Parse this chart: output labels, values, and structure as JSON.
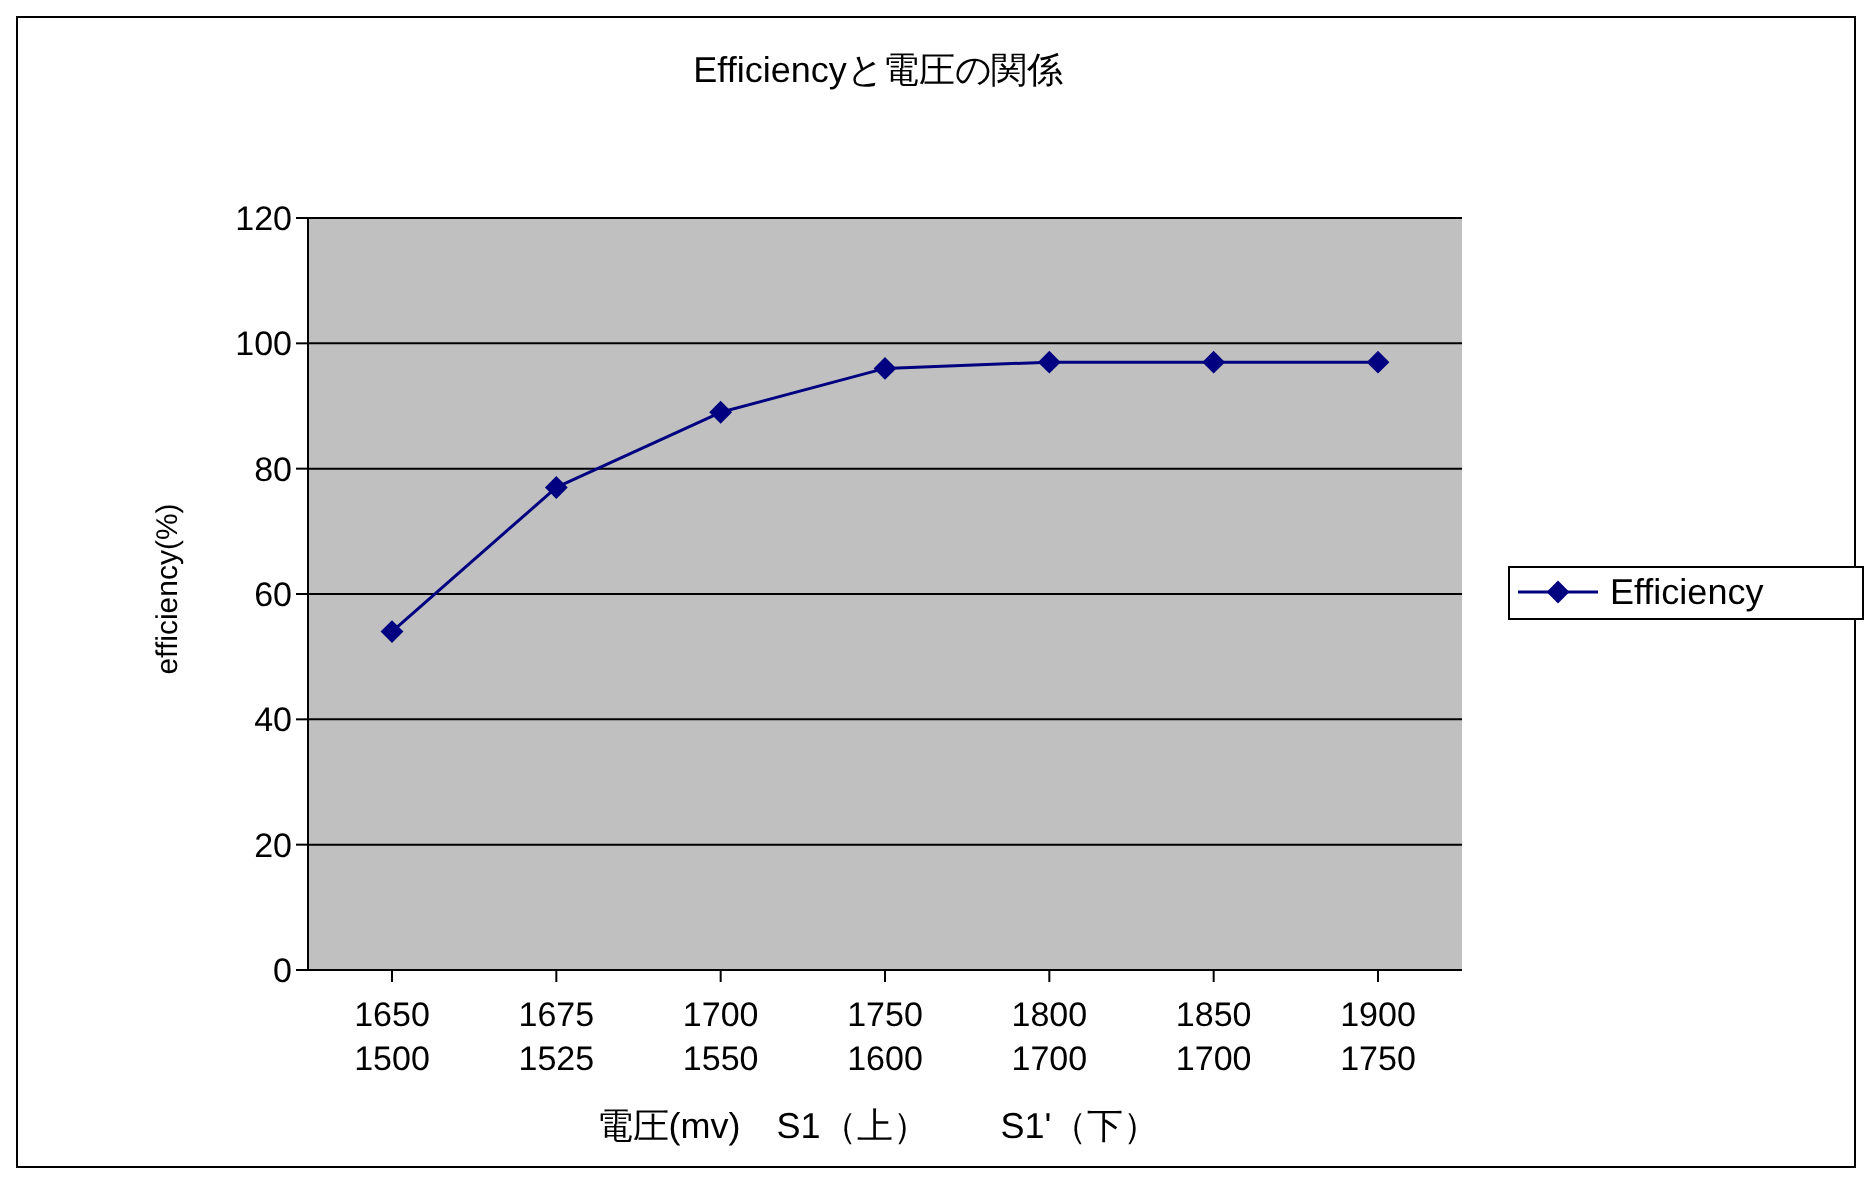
{
  "chart_data": {
    "type": "line",
    "title": "Efficiencyと電圧の関係",
    "xlabel": "電圧(mv)　S1（上）　　S1'（下）",
    "ylabel": "efficiency(%)",
    "categories": [
      "1650\n1500",
      "1675\n1525",
      "1700\n1550",
      "1750\n1600",
      "1800\n1700",
      "1850\n1700",
      "1900\n1750"
    ],
    "series": [
      {
        "name": "Efficiency",
        "color": "#000080",
        "values": [
          54,
          77,
          89,
          96,
          97,
          97,
          97
        ]
      }
    ],
    "ylim": [
      0,
      120
    ],
    "yticks": [
      0,
      20,
      40,
      60,
      80,
      100,
      120
    ],
    "grid": "y",
    "legend": "right",
    "marker": "diamond",
    "line_style": "solid"
  }
}
